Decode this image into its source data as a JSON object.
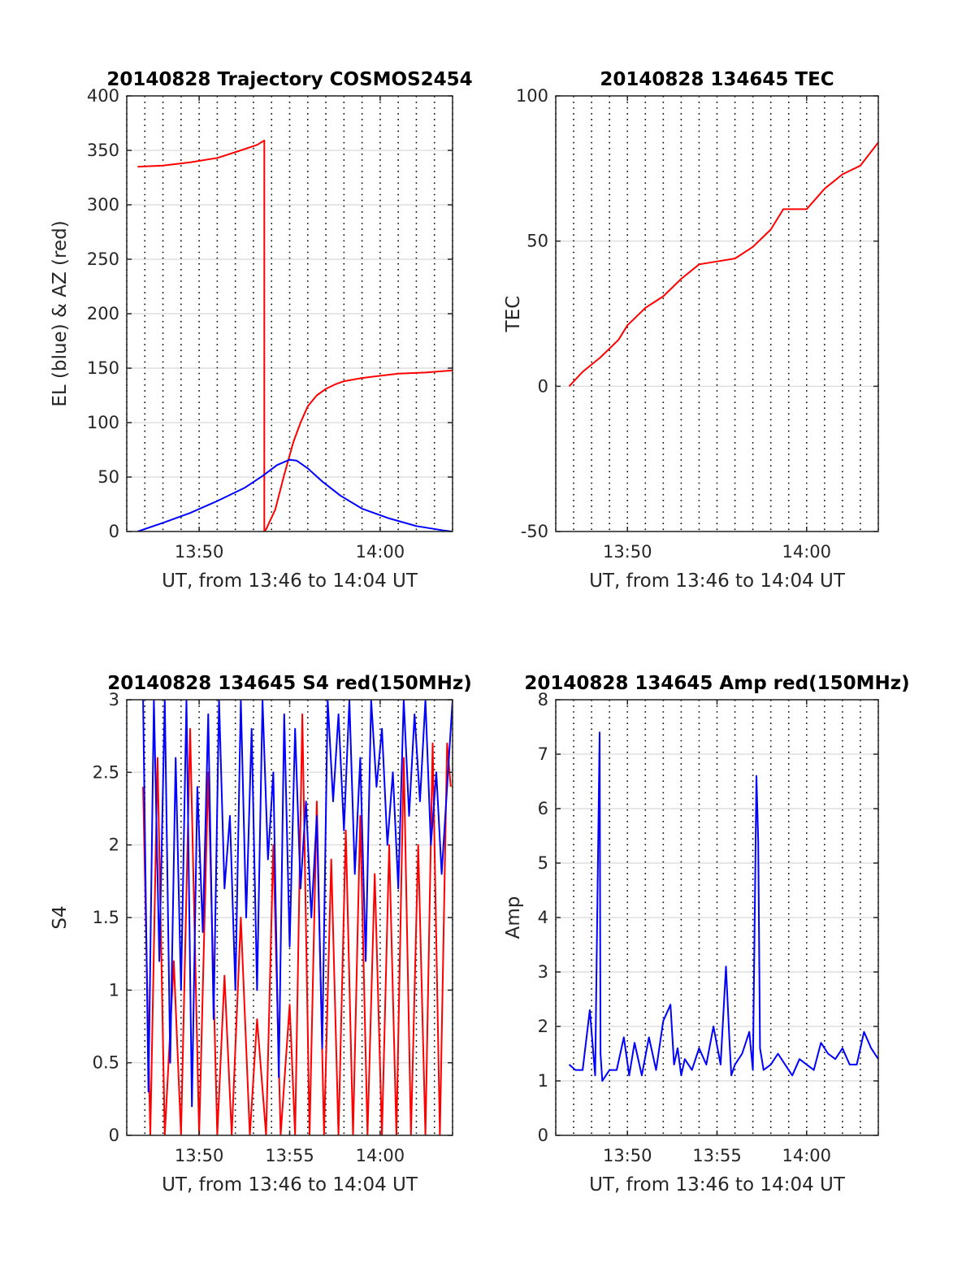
{
  "figure": {
    "background": "#ffffff"
  },
  "colors": {
    "red": "#ff0000",
    "blue": "#0000ff",
    "axis": "#262626",
    "grid": "#dfdfdf",
    "dotgrid": "#000000"
  },
  "chart_data": [
    {
      "id": "trajectory",
      "type": "line",
      "title": "20140828 Trajectory COSMOS2454",
      "xlabel": "UT, from 13:46 to 14:04 UT",
      "ylabel": "EL (blue) & AZ (red)",
      "x_unit": "minutes after 13:46 UT",
      "xlim": [
        0,
        18
      ],
      "ylim": [
        0,
        400
      ],
      "yticks": [
        0,
        50,
        100,
        150,
        200,
        250,
        300,
        350,
        400
      ],
      "ytick_labels": [
        "0",
        "50",
        "100",
        "150",
        "200",
        "250",
        "300",
        "350",
        "400"
      ],
      "xticks": [
        4,
        14
      ],
      "xtick_labels": [
        "13:50",
        "14:00"
      ],
      "minor_dotted_grid": "every minute",
      "series": [
        {
          "color": "#ff0000",
          "x": [
            0.6,
            2,
            3.5,
            5,
            6.3,
            7.2,
            7.6,
            7.601,
            7.7,
            8.2,
            8.7,
            9.2,
            9.6,
            10.0,
            10.5,
            11.0,
            11.5,
            12.0,
            13.0,
            14.0,
            15.0,
            16.5,
            18.0
          ],
          "y": [
            335,
            336,
            339,
            343,
            350,
            355,
            359,
            0,
            2,
            20,
            52,
            82,
            100,
            115,
            125,
            131,
            135,
            138,
            141,
            143,
            145,
            146,
            148
          ]
        },
        {
          "color": "#0000ff",
          "x": [
            0.6,
            2,
            3.5,
            5,
            6.5,
            7.5,
            8.3,
            9.0,
            9.4,
            10.0,
            10.8,
            11.8,
            13.0,
            14.5,
            16.0,
            17.5,
            18.0
          ],
          "y": [
            0,
            8,
            17,
            28,
            40,
            51,
            61,
            66,
            65,
            58,
            46,
            33,
            21,
            12,
            5,
            1,
            0
          ]
        }
      ]
    },
    {
      "id": "tec",
      "type": "line",
      "title": "20140828 134645 TEC",
      "xlabel": "UT, from 13:46 to 14:04 UT",
      "ylabel": "TEC",
      "x_unit": "minutes after 13:46 UT",
      "xlim": [
        0,
        18
      ],
      "ylim": [
        -50,
        100
      ],
      "yticks": [
        -50,
        0,
        50,
        100
      ],
      "ytick_labels": [
        "-50",
        "0",
        "50",
        "100"
      ],
      "xticks": [
        4,
        14
      ],
      "xtick_labels": [
        "13:50",
        "14:00"
      ],
      "minor_dotted_grid": "every minute",
      "series": [
        {
          "color": "#ff0000",
          "x": [
            0.75,
            1.5,
            2.5,
            3.5,
            4.0,
            5.0,
            6.0,
            7.0,
            8.0,
            9.0,
            10.0,
            11.0,
            12.0,
            12.7,
            13.5,
            14.0,
            15.0,
            16.0,
            17.0,
            17.5,
            18.0
          ],
          "y": [
            0,
            5,
            10,
            16,
            21,
            27,
            31,
            37,
            42,
            43,
            44,
            48,
            54,
            61,
            61,
            61,
            68,
            73,
            76,
            80,
            84
          ]
        }
      ]
    },
    {
      "id": "s4",
      "type": "line",
      "title": "20140828 134645 S4 red(150MHz)",
      "xlabel": "UT, from 13:46 to 14:04 UT",
      "ylabel": "S4",
      "x_unit": "minutes after 13:46 UT",
      "xlim": [
        0,
        18
      ],
      "ylim": [
        0,
        3
      ],
      "yticks": [
        0,
        0.5,
        1,
        1.5,
        2,
        2.5,
        3
      ],
      "ytick_labels": [
        "0",
        "0.5",
        "1",
        "1.5",
        "2",
        "2.5",
        "3"
      ],
      "xticks": [
        4,
        9,
        14
      ],
      "xtick_labels": [
        "13:50",
        "13:55",
        "14:00"
      ],
      "minor_dotted_grid": "every minute",
      "series": [
        {
          "color": "#ff0000",
          "x": [
            0.9,
            1.3,
            1.7,
            2.1,
            2.6,
            3.0,
            3.5,
            4.0,
            4.5,
            5.0,
            5.4,
            5.8,
            6.3,
            6.8,
            7.2,
            7.7,
            8.1,
            8.5,
            9.0,
            9.3,
            9.7,
            10.1,
            10.5,
            10.9,
            11.3,
            11.7,
            12.1,
            12.5,
            12.9,
            13.3,
            13.7,
            14.1,
            14.5,
            14.9,
            15.3,
            15.7,
            16.1,
            16.5,
            16.9,
            17.3,
            17.7,
            17.9
          ],
          "y": [
            2.4,
            0,
            2.6,
            0,
            1.2,
            0,
            2.8,
            0,
            2.5,
            0,
            1.1,
            0,
            1.5,
            0,
            0.8,
            0,
            2.0,
            0,
            0.9,
            0,
            2.9,
            0,
            2.3,
            0,
            1.9,
            0,
            2.1,
            0,
            2.2,
            0,
            1.8,
            0,
            2.0,
            0,
            2.6,
            0,
            2.0,
            0,
            2.7,
            0,
            2.7,
            2.4
          ]
        },
        {
          "color": "#0000ff",
          "x": [
            0.9,
            1.2,
            1.5,
            1.8,
            2.1,
            2.4,
            2.7,
            3.0,
            3.3,
            3.6,
            3.9,
            4.2,
            4.5,
            4.8,
            5.1,
            5.4,
            5.7,
            6.0,
            6.3,
            6.6,
            6.9,
            7.2,
            7.5,
            7.8,
            8.1,
            8.4,
            8.7,
            9.0,
            9.3,
            9.6,
            9.9,
            10.2,
            10.5,
            10.8,
            11.1,
            11.4,
            11.7,
            12.0,
            12.3,
            12.6,
            12.9,
            13.2,
            13.5,
            13.8,
            14.1,
            14.4,
            14.7,
            15.0,
            15.3,
            15.6,
            15.9,
            16.2,
            16.5,
            16.8,
            17.1,
            17.4,
            17.7,
            18.0
          ],
          "y": [
            3,
            0.3,
            3,
            1.2,
            3,
            0.5,
            2.6,
            1.0,
            3,
            0.2,
            2.4,
            1.4,
            2.9,
            0.8,
            3,
            1.7,
            2.2,
            1.0,
            3,
            1.5,
            2.8,
            1.0,
            3,
            1.9,
            2.5,
            0.4,
            2.9,
            1.3,
            2.8,
            1.7,
            2.3,
            1.5,
            2.2,
            0.6,
            3,
            2.3,
            2.9,
            2.1,
            3,
            1.8,
            2.6,
            1.2,
            3,
            2.4,
            2.8,
            2.0,
            2.5,
            1.7,
            3,
            2.2,
            2.9,
            2.3,
            3,
            2.0,
            2.5,
            1.8,
            2.4,
            3
          ]
        }
      ]
    },
    {
      "id": "amp",
      "type": "line",
      "title": "20140828 134645 Amp red(150MHz)",
      "xlabel": "UT, from 13:46 to 14:04 UT",
      "ylabel": "Amp",
      "x_unit": "minutes after 13:46 UT",
      "xlim": [
        0,
        18
      ],
      "ylim": [
        0,
        8
      ],
      "yticks": [
        0,
        1,
        2,
        3,
        4,
        5,
        6,
        7,
        8
      ],
      "ytick_labels": [
        "0",
        "1",
        "2",
        "3",
        "4",
        "5",
        "6",
        "7",
        "8"
      ],
      "xticks": [
        4,
        9,
        14
      ],
      "xtick_labels": [
        "13:50",
        "13:55",
        "14:00"
      ],
      "minor_dotted_grid": "every minute",
      "series": [
        {
          "color": "#0000ff",
          "x": [
            0.75,
            1.1,
            1.5,
            1.9,
            2.2,
            2.45,
            2.5,
            2.6,
            3.0,
            3.4,
            3.8,
            4.1,
            4.4,
            4.8,
            5.2,
            5.6,
            6.0,
            6.4,
            6.6,
            6.8,
            7.0,
            7.2,
            7.6,
            8.0,
            8.4,
            8.8,
            9.2,
            9.5,
            9.7,
            9.8,
            10.0,
            10.4,
            10.8,
            11.0,
            11.2,
            11.3,
            11.4,
            11.6,
            12.0,
            12.4,
            12.8,
            13.2,
            13.6,
            14.0,
            14.4,
            14.8,
            15.2,
            15.6,
            16.0,
            16.4,
            16.8,
            17.2,
            17.6,
            18.0
          ],
          "y": [
            1.3,
            1.2,
            1.2,
            2.3,
            1.1,
            7.4,
            1.5,
            1.0,
            1.2,
            1.2,
            1.8,
            1.1,
            1.7,
            1.1,
            1.8,
            1.2,
            2.1,
            2.4,
            1.3,
            1.6,
            1.1,
            1.4,
            1.2,
            1.6,
            1.3,
            2.0,
            1.3,
            3.1,
            1.7,
            1.1,
            1.3,
            1.5,
            1.9,
            1.2,
            6.6,
            5.4,
            1.6,
            1.2,
            1.3,
            1.5,
            1.3,
            1.1,
            1.4,
            1.3,
            1.2,
            1.7,
            1.5,
            1.4,
            1.6,
            1.3,
            1.3,
            1.9,
            1.6,
            1.4
          ]
        }
      ]
    }
  ]
}
